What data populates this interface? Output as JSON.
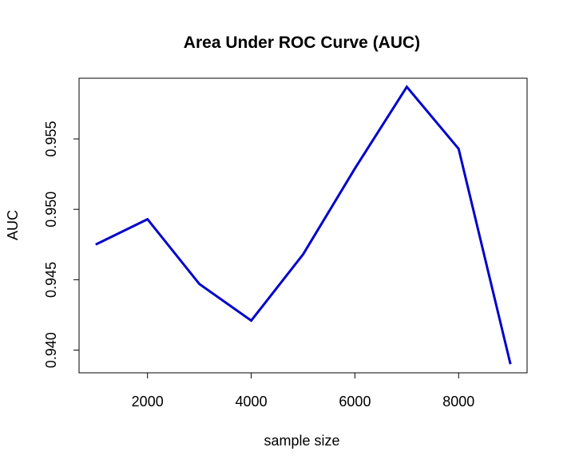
{
  "chart_data": {
    "type": "line",
    "title": "Area Under ROC Curve (AUC)",
    "xlabel": "sample size",
    "ylabel": "AUC",
    "x": [
      1000,
      2000,
      3000,
      4000,
      5000,
      6000,
      7000,
      8000,
      9000
    ],
    "series": [
      {
        "values": [
          0.9475,
          0.9493,
          0.9447,
          0.9421,
          0.9468,
          0.9529,
          0.9587,
          0.9543,
          0.939
        ],
        "color": "#0000cd"
      }
    ],
    "xlim": [
      680,
      9320
    ],
    "ylim": [
      0.93839,
      0.95931
    ],
    "x_ticks": [
      2000,
      4000,
      6000,
      8000
    ],
    "x_tick_labels": [
      "2000",
      "4000",
      "6000",
      "8000"
    ],
    "y_ticks": [
      0.94,
      0.945,
      0.95,
      0.955
    ],
    "y_tick_labels": [
      "0.940",
      "0.945",
      "0.950",
      "0.955"
    ],
    "grid": false,
    "legend": "none"
  }
}
